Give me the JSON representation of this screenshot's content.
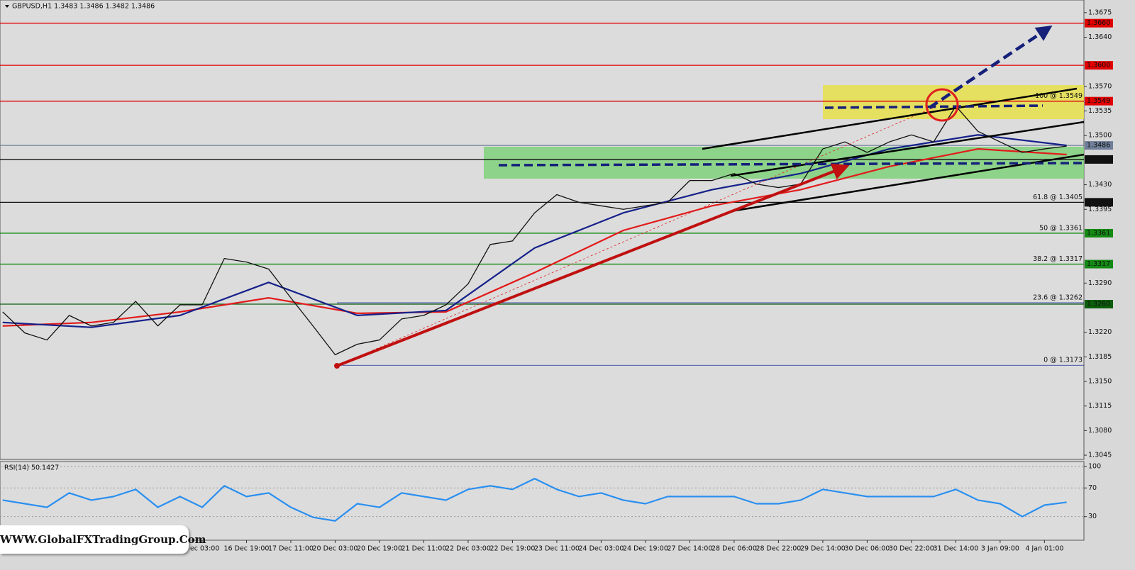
{
  "chart_data": [
    {
      "type": "line",
      "title": "GBPUSD,H1  1.3483 1.3486 1.3482 1.3486",
      "xlim": [
        -0.12,
        48.78
      ],
      "ylim": [
        1.3039,
        1.3693
      ],
      "yticks": [
        1.3675,
        {
          "value": 1.364,
          "label": "1.3640"
        },
        {
          "value": 1.357,
          "label": "1.3570"
        },
        1.3535,
        {
          "value": 1.35,
          "label": "1.3500"
        },
        {
          "value": 1.343,
          "label": "1.3430"
        },
        1.3395,
        {
          "value": 1.329,
          "label": "1.3290"
        },
        {
          "value": 1.322,
          "label": "1.3220"
        },
        1.3185,
        {
          "value": 1.315,
          "label": "1.3150"
        },
        1.3115,
        {
          "value": 1.308,
          "label": "1.3080"
        },
        1.3045
      ],
      "levels": [
        {
          "value": 1.366,
          "label": "1.3660",
          "color": "#e00000"
        },
        {
          "value": 1.36,
          "label": "1.3600",
          "color": "#e00000"
        },
        {
          "value": 1.3549,
          "label": "1.3549",
          "color": "#e00000"
        },
        {
          "value": 1.3486,
          "label": "1.3486",
          "color": "#6f7f99"
        },
        {
          "value": 1.3466,
          "label": "1.3466",
          "color": "#111111"
        },
        {
          "value": 1.3405,
          "label": "1.3405",
          "color": "#111111"
        },
        {
          "value": 1.3361,
          "label": "1.3361",
          "color": "#138a13"
        },
        {
          "value": 1.3317,
          "label": "1.3317",
          "color": "#138a13"
        },
        {
          "value": 1.326,
          "label": "1.3260",
          "color": "#0b5e0b"
        }
      ],
      "fibonacci": [
        {
          "label": "100 @ 1.3549",
          "value": 1.3549
        },
        {
          "label": "61.8 @ 1.3405",
          "value": 1.3405
        },
        {
          "label": "50 @ 1.3361",
          "value": 1.3361
        },
        {
          "label": "38.2 @ 1.3317",
          "value": 1.3317
        },
        {
          "label": "23.6 @ 1.3262",
          "value": 1.3262
        },
        {
          "label": "0 @ 1.3173",
          "value": 1.3173
        }
      ],
      "fib_color": "#1a2a9a",
      "series": [
        {
          "color": "#e21b1b",
          "x": [
            0,
            4,
            8,
            12,
            16,
            20,
            24,
            28,
            32,
            36,
            40,
            44,
            48
          ],
          "values": [
            1.3229,
            1.3234,
            1.3249,
            1.3269,
            1.3247,
            1.3249,
            1.3305,
            1.3365,
            1.34,
            1.3423,
            1.3456,
            1.3481,
            1.3473
          ]
        },
        {
          "color": "#15208a",
          "x": [
            0,
            4,
            8,
            12,
            16,
            20,
            24,
            28,
            32,
            36,
            40,
            44,
            48
          ],
          "values": [
            1.3234,
            1.3227,
            1.3244,
            1.3291,
            1.3244,
            1.3251,
            1.334,
            1.339,
            1.3423,
            1.3446,
            1.3481,
            1.3501,
            1.3486
          ]
        },
        {
          "color": "#111111",
          "x": [
            0,
            1,
            2,
            3,
            4,
            5,
            6,
            7,
            8,
            9,
            10,
            11,
            12,
            13,
            14,
            15,
            16,
            17,
            18,
            19,
            20,
            21,
            22,
            23,
            24,
            25,
            26,
            27,
            28,
            29,
            30,
            31,
            32,
            33,
            34,
            35,
            36,
            37,
            38,
            39,
            40,
            41,
            42,
            43,
            44,
            45,
            46,
            47,
            48
          ],
          "values": [
            1.3249,
            1.3219,
            1.3209,
            1.3244,
            1.3229,
            1.3234,
            1.3264,
            1.3229,
            1.3259,
            1.3259,
            1.3325,
            1.332,
            1.331,
            1.3269,
            1.3229,
            1.3188,
            1.3203,
            1.3209,
            1.3239,
            1.3244,
            1.3259,
            1.3289,
            1.3345,
            1.335,
            1.339,
            1.3416,
            1.3405,
            1.34,
            1.3395,
            1.34,
            1.3405,
            1.3436,
            1.3436,
            1.3446,
            1.3431,
            1.3426,
            1.3431,
            1.3481,
            1.3491,
            1.3476,
            1.3491,
            1.3501,
            1.3491,
            1.3542,
            1.3506,
            1.3491,
            1.3476,
            1.3481,
            1.3485
          ]
        }
      ]
    },
    {
      "type": "line",
      "title": "RSI(14) 50.1427",
      "xlim": [
        -0.12,
        48.78
      ],
      "ylim": [
        -3,
        106.9
      ],
      "yticks": [
        100,
        70,
        30
      ],
      "grid": true,
      "xticks": [
        {
          "value": 9,
          "label": "Dec 03:00"
        },
        {
          "value": 11,
          "label": "16 Dec 19:00"
        },
        {
          "value": 13,
          "label": "17 Dec 11:00"
        },
        {
          "value": 15,
          "label": "20 Dec 03:00"
        },
        {
          "value": 17,
          "label": "20 Dec 19:00"
        },
        {
          "value": 19,
          "label": "21 Dec 11:00"
        },
        {
          "value": 21,
          "label": "22 Dec 03:00"
        },
        {
          "value": 23,
          "label": "22 Dec 19:00"
        },
        {
          "value": 25,
          "label": "23 Dec 11:00"
        },
        {
          "value": 27,
          "label": "24 Dec 03:00"
        },
        {
          "value": 29,
          "label": "24 Dec 19:00"
        },
        {
          "value": 31,
          "label": "27 Dec 14:00"
        },
        {
          "value": 33,
          "label": "28 Dec 06:00"
        },
        {
          "value": 35,
          "label": "28 Dec 22:00"
        },
        {
          "value": 37,
          "label": "29 Dec 14:00"
        },
        {
          "value": 39,
          "label": "30 Dec 06:00"
        },
        {
          "value": 41,
          "label": "30 Dec 22:00"
        },
        {
          "value": 43,
          "label": "31 Dec 14:00"
        },
        {
          "value": 45,
          "label": "3 Jan 09:00"
        },
        {
          "value": 47,
          "label": "4 Jan 01:00"
        }
      ],
      "series": [
        {
          "color": "#2a8ff0",
          "x": [
            0,
            1,
            2,
            3,
            4,
            5,
            6,
            7,
            8,
            9,
            10,
            11,
            12,
            13,
            14,
            15,
            16,
            17,
            18,
            19,
            20,
            21,
            22,
            23,
            24,
            25,
            26,
            27,
            28,
            29,
            30,
            31,
            32,
            33,
            34,
            35,
            36,
            37,
            38,
            39,
            40,
            41,
            42,
            43,
            44,
            45,
            46,
            47,
            48
          ],
          "values": [
            53,
            48,
            43,
            63,
            53,
            58,
            68,
            43,
            58,
            43,
            73,
            58,
            63,
            43,
            29,
            24,
            48,
            43,
            63,
            58,
            53,
            68,
            73,
            68,
            83,
            68,
            58,
            63,
            53,
            48,
            58,
            58,
            58,
            58,
            48,
            48,
            53,
            68,
            63,
            58,
            58,
            58,
            58,
            68,
            53,
            48,
            30,
            46,
            50
          ]
        }
      ]
    }
  ],
  "watermark": "WWW.GlobalFXTradingGroup.Com"
}
